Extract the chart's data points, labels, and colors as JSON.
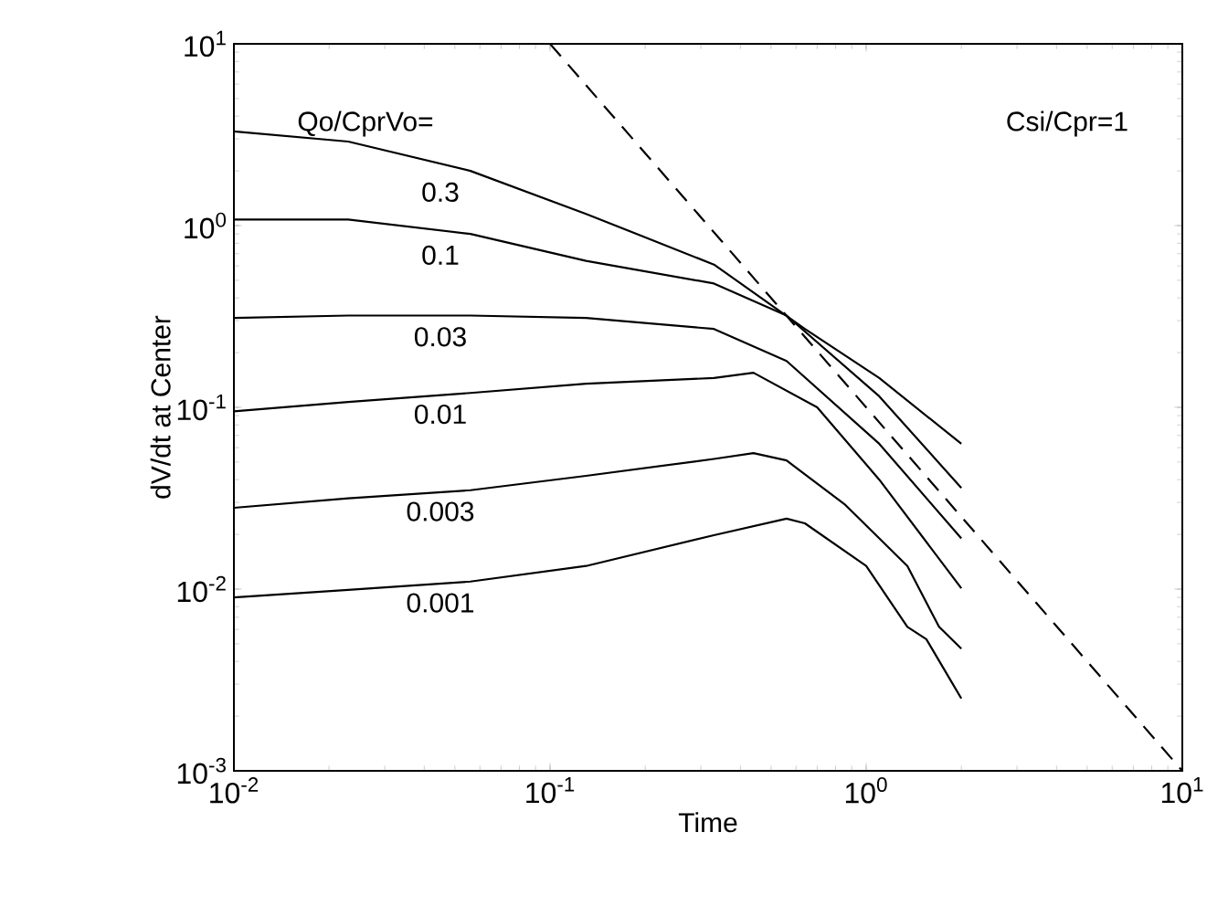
{
  "chart_data": {
    "type": "line",
    "xlabel": "Time",
    "ylabel": "dV/dt  at Center",
    "log": "xy",
    "xlim": [
      0.01,
      10
    ],
    "ylim": [
      0.001,
      10
    ],
    "xticks": [
      {
        "value": 0.01,
        "label": "10$^{-2}$"
      },
      {
        "value": 0.1,
        "label": "10$^{-1}$"
      },
      {
        "value": 1,
        "label": "10$^{0}$"
      },
      {
        "value": 10,
        "label": "10$^{1}$"
      }
    ],
    "yticks": [
      {
        "value": 0.001,
        "label": "10$^{-3}$"
      },
      {
        "value": 0.01,
        "label": "10$^{-2}$"
      },
      {
        "value": 0.1,
        "label": "10$^{-1}$"
      },
      {
        "value": 1,
        "label": "10$^{0}$"
      },
      {
        "value": 10,
        "label": "10$^{1}$"
      }
    ],
    "grid": false,
    "legend": false,
    "marker": "none",
    "line_style": "solid",
    "annotations": [
      "Qo/CprVo=",
      "Csi/Cpr=1"
    ],
    "series": [
      {
        "name": "0.3",
        "color": "#000000",
        "x": [
          0.01,
          0.023,
          0.056,
          0.13,
          0.33,
          0.64,
          1.1,
          2
        ],
        "values": [
          3.3,
          2.9,
          2.0,
          1.16,
          0.61,
          0.27,
          0.145,
          0.063
        ]
      },
      {
        "name": "0.1",
        "color": "#000000",
        "x": [
          0.01,
          0.023,
          0.056,
          0.13,
          0.33,
          0.56,
          1.1,
          2
        ],
        "values": [
          1.08,
          1.08,
          0.9,
          0.64,
          0.48,
          0.32,
          0.115,
          0.036
        ]
      },
      {
        "name": "0.03",
        "color": "#000000",
        "x": [
          0.01,
          0.023,
          0.056,
          0.13,
          0.33,
          0.56,
          1.1,
          2
        ],
        "values": [
          0.31,
          0.32,
          0.32,
          0.31,
          0.27,
          0.18,
          0.063,
          0.019
        ]
      },
      {
        "name": "0.01",
        "color": "#000000",
        "x": [
          0.01,
          0.023,
          0.056,
          0.13,
          0.33,
          0.44,
          0.7,
          1.1,
          2
        ],
        "values": [
          0.095,
          0.107,
          0.12,
          0.135,
          0.145,
          0.155,
          0.1,
          0.04,
          0.0101
        ]
      },
      {
        "name": "0.003",
        "color": "#000000",
        "x": [
          0.01,
          0.023,
          0.056,
          0.13,
          0.33,
          0.44,
          0.56,
          0.86,
          1.35,
          1.7,
          2
        ],
        "values": [
          0.028,
          0.0316,
          0.035,
          0.042,
          0.052,
          0.056,
          0.051,
          0.029,
          0.0134,
          0.0062,
          0.0047
        ]
      },
      {
        "name": "0.001",
        "color": "#000000",
        "x": [
          0.01,
          0.023,
          0.056,
          0.13,
          0.33,
          0.56,
          0.64,
          1,
          1.35,
          1.55,
          2
        ],
        "values": [
          0.009,
          0.0099,
          0.011,
          0.0134,
          0.0198,
          0.0244,
          0.023,
          0.0134,
          0.0062,
          0.0053,
          0.0025
        ]
      },
      {
        "color": "#000000",
        "line_style": "dashed",
        "x": [
          0.1,
          10
        ],
        "values": [
          10,
          0.001
        ]
      }
    ]
  }
}
